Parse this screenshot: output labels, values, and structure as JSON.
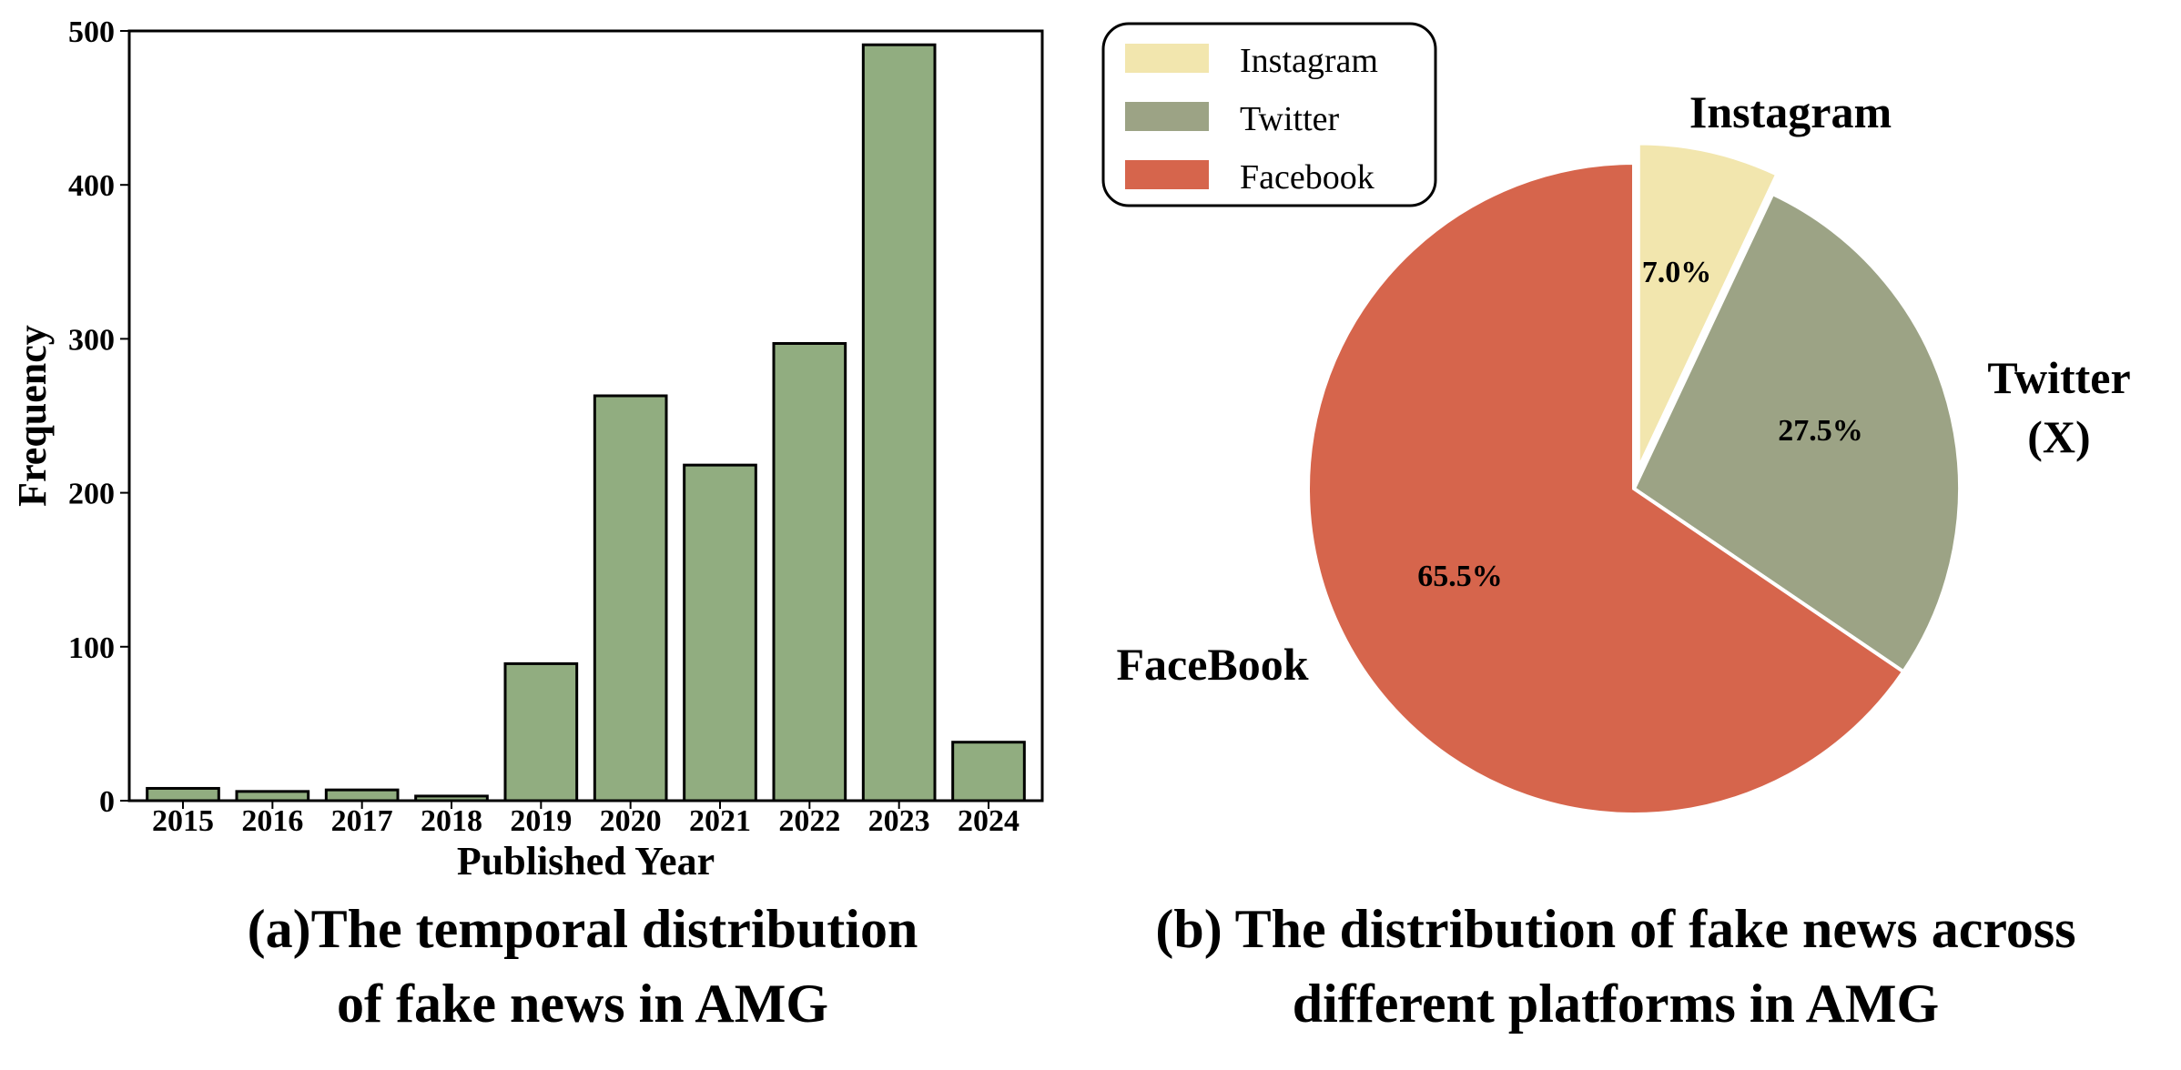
{
  "chart_data": [
    {
      "type": "bar",
      "title": "",
      "xlabel": "Published Year",
      "ylabel": "Frequency",
      "categories": [
        "2015",
        "2016",
        "2017",
        "2018",
        "2019",
        "2020",
        "2021",
        "2022",
        "2023",
        "2024"
      ],
      "values": [
        8,
        6,
        7,
        3,
        89,
        263,
        218,
        297,
        491,
        38
      ],
      "ylim": [
        0,
        500
      ],
      "yticks": [
        "0",
        "100",
        "200",
        "300",
        "400",
        "500"
      ],
      "grid": false,
      "colors": {
        "bar": "#91ad80",
        "edge": "#000000"
      }
    },
    {
      "type": "pie",
      "title": "",
      "legend_position": "top-left",
      "legend": [
        "Instagram",
        "Twitter",
        "Facebook"
      ],
      "slices": [
        {
          "legend_label": "Instagram",
          "outer_label": "Instagram",
          "value": 7.0,
          "pct_label": "7.0%",
          "color": "#f2e6ae",
          "exploded": true
        },
        {
          "legend_label": "Twitter",
          "outer_label": "Twitter\n(X)",
          "value": 27.5,
          "pct_label": "27.5%",
          "color": "#9ca385",
          "exploded": false
        },
        {
          "legend_label": "Facebook",
          "outer_label": "FaceBook",
          "value": 65.5,
          "pct_label": "65.5%",
          "color": "#d6654c",
          "exploded": false
        }
      ]
    }
  ],
  "captions": {
    "a": [
      "(a)The temporal distribution",
      "of fake news in AMG"
    ],
    "b": [
      "(b) The distribution of fake news across",
      "different platforms in AMG"
    ]
  }
}
